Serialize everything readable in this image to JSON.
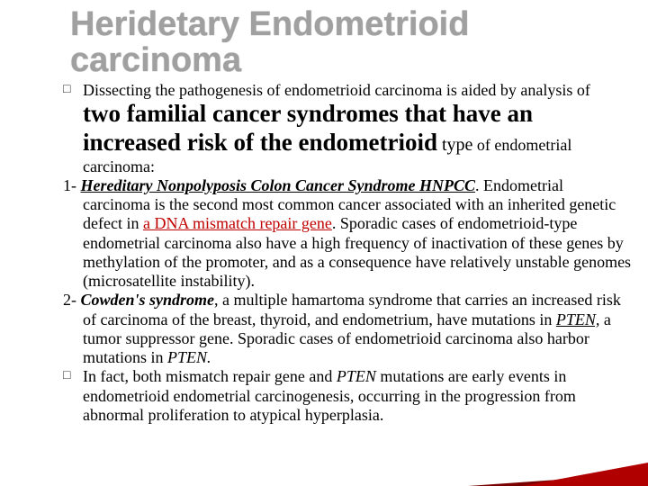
{
  "title": "Heridetary Endometrioid carcinoma",
  "bullet1": {
    "lead": "Dissecting the pathogenesis of endometrioid carcinoma is aided by analysis of ",
    "emph": "two familial cancer syndromes that have an increased risk of the endometrioid",
    "trail_small": " type",
    "trail2": "of endometrial carcinoma:"
  },
  "item1": {
    "num": "1- ",
    "name": "Hereditary Nonpolyposis Colon Cancer Syndrome HNPCC",
    "post": ". Endometrial carcinoma is the second most common cancer associated with  an inherited genetic defect in ",
    "red": "a DNA mismatch repair gene",
    "rest": ". Sporadic cases of endometrioid-type endometrial carcinoma also have a high frequency of inactivation of these genes by methylation of the promoter, and as a consequence have relatively unstable genomes (microsatellite instability)."
  },
  "item2": {
    "num": "2- ",
    "name": "Cowden's syndrome",
    "post1": ", a multiple hamartoma syndrome that carries an increased risk of carcinoma of the breast, thyroid, and endometrium, have mutations in ",
    "gene1": "PTEN,",
    "post2": " a tumor suppressor gene. Sporadic cases of endometrioid carcinoma also harbor mutations in ",
    "gene2": "PTEN."
  },
  "bullet2": {
    "lead": " In fact, both mismatch repair gene and ",
    "gene": "PTEN",
    "rest": " mutations are early events in endometrioid endometrial carcinogenesis, occurring in the progression from abnormal proliferation to atypical hyperplasia."
  }
}
